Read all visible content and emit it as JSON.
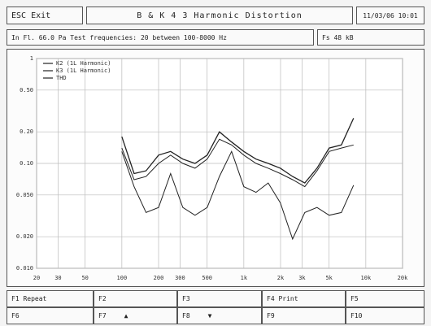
{
  "header": {
    "exit": "ESC Exit",
    "title": "B & K 4 3   Harmonic Distortion",
    "datetime": "11/03/06 10:01"
  },
  "info": {
    "left": "In Fl. 66.0 Pa   Test frequencies: 20 between 100-8000 Hz",
    "right": "Fs 48 kB"
  },
  "chart_data": {
    "type": "line",
    "xscale": "log",
    "yscale": "log",
    "grid": true,
    "x": [
      100,
      126,
      158,
      200,
      251,
      316,
      398,
      501,
      631,
      794,
      1000,
      1259,
      1585,
      1995,
      2512,
      3162,
      3981,
      5012,
      6310,
      7943
    ],
    "series": [
      {
        "name": "K2 (1L Harmonic)",
        "color": "#222222",
        "values": [
          0.14,
          0.07,
          0.075,
          0.1,
          0.12,
          0.1,
          0.09,
          0.11,
          0.17,
          0.15,
          0.12,
          0.1,
          0.09,
          0.08,
          0.07,
          0.06,
          0.085,
          0.13,
          0.14,
          0.15
        ]
      },
      {
        "name": "K3 (1L Harmonic)",
        "color": "#222222",
        "values": [
          0.13,
          0.06,
          0.034,
          0.038,
          0.08,
          0.038,
          0.032,
          0.038,
          0.075,
          0.13,
          0.06,
          0.053,
          0.065,
          0.042,
          0.019,
          0.034,
          0.038,
          0.032,
          0.034,
          0.062
        ]
      },
      {
        "name": "THD",
        "color": "#222222",
        "values": [
          0.18,
          0.08,
          0.085,
          0.12,
          0.13,
          0.11,
          0.1,
          0.12,
          0.2,
          0.16,
          0.13,
          0.11,
          0.1,
          0.09,
          0.075,
          0.065,
          0.09,
          0.14,
          0.15,
          0.27
        ]
      }
    ],
    "xlim": [
      20,
      20000
    ],
    "xticks": [
      20,
      30,
      50,
      100,
      200,
      300,
      500,
      {
        "value": 1000,
        "label": "1k"
      },
      {
        "value": 2000,
        "label": "2k"
      },
      {
        "value": 3000,
        "label": "3k"
      },
      {
        "value": 5000,
        "label": "5k"
      },
      {
        "value": 10000,
        "label": "10k"
      },
      {
        "value": 20000,
        "label": "20k"
      }
    ],
    "ylim": [
      0.01,
      1
    ],
    "yticks": [
      1,
      {
        "value": 0.5,
        "label": "0.50"
      },
      {
        "value": 0.2,
        "label": "0.20"
      },
      {
        "value": 0.1,
        "label": "0.10"
      },
      {
        "value": 0.05,
        "label": "0.050"
      },
      {
        "value": 0.02,
        "label": "0.020"
      },
      {
        "value": 0.01,
        "label": "0.010"
      }
    ]
  },
  "keys": [
    [
      {
        "label": "F1 Repeat"
      },
      {
        "label": "F2"
      },
      {
        "label": "F3"
      },
      {
        "label": "F4 Print"
      },
      {
        "label": "F5"
      }
    ],
    [
      {
        "label": "F6"
      },
      {
        "label": "F7",
        "symbol": "▲"
      },
      {
        "label": "F8",
        "symbol": "▼"
      },
      {
        "label": "F9"
      },
      {
        "label": "F10"
      }
    ]
  ]
}
